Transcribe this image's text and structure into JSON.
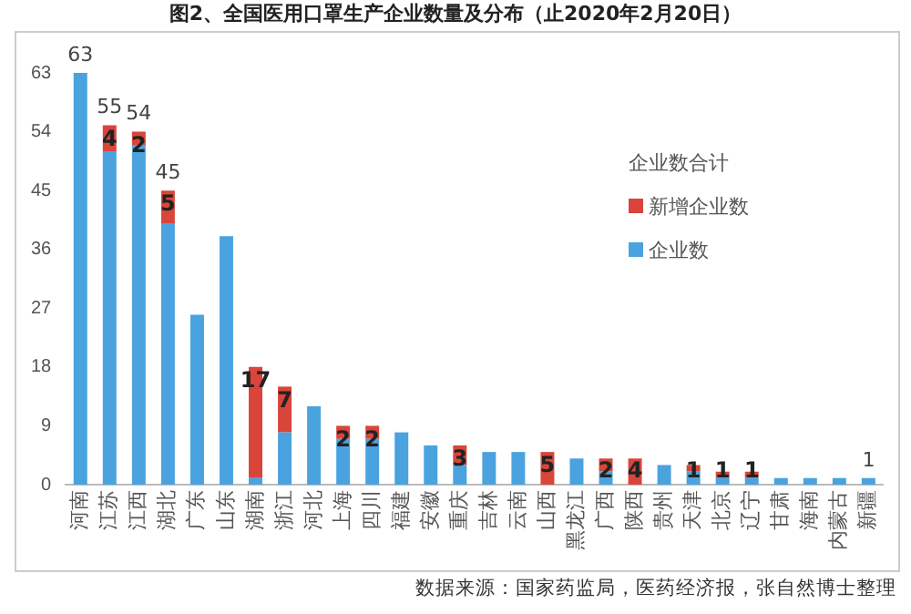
{
  "chart_data": {
    "type": "bar",
    "title": "图2、全国医用口罩生产企业数量及分布（止2020年2月20日）",
    "categories": [
      "河南",
      "江苏",
      "江西",
      "湖北",
      "广东",
      "山东",
      "湖南",
      "浙江",
      "河北",
      "上海",
      "四川",
      "福建",
      "安徽",
      "重庆",
      "吉林",
      "云南",
      "山西",
      "黑龙江",
      "广西",
      "陕西",
      "贵州",
      "天津",
      "北京",
      "辽宁",
      "甘肃",
      "海南",
      "内蒙古",
      "新疆"
    ],
    "stacked": true,
    "series": [
      {
        "name": "企业数",
        "color": "#4aa3df",
        "values": [
          63,
          51,
          52,
          40,
          26,
          38,
          1,
          8,
          12,
          7,
          7,
          8,
          6,
          3,
          5,
          5,
          0,
          4,
          2,
          0,
          3,
          2,
          1,
          1,
          1,
          1,
          1,
          1
        ]
      },
      {
        "name": "新增企业数",
        "color": "#d9453a",
        "values": [
          0,
          4,
          2,
          5,
          0,
          0,
          17,
          7,
          0,
          2,
          2,
          0,
          0,
          3,
          0,
          0,
          5,
          0,
          2,
          4,
          0,
          1,
          1,
          1,
          0,
          0,
          0,
          0
        ],
        "value_labels": [
          null,
          "4",
          "2",
          "5",
          null,
          null,
          "17",
          "7",
          null,
          "2",
          "2",
          null,
          null,
          "3",
          null,
          null,
          "5",
          null,
          "2",
          "4",
          null,
          "1",
          "1",
          "1",
          null,
          null,
          null,
          null
        ]
      }
    ],
    "totals": [
      "63",
      "55",
      "54",
      "45",
      null,
      null,
      null,
      null,
      null,
      null,
      null,
      null,
      null,
      null,
      null,
      null,
      null,
      null,
      null,
      null,
      null,
      null,
      null,
      null,
      null,
      null,
      null,
      "1"
    ],
    "legend_title": "企业数合计",
    "legend": "right",
    "ylim": [
      0,
      63
    ],
    "yticks": [
      0,
      9,
      18,
      27,
      36,
      45,
      54,
      63
    ],
    "grid": false,
    "annotations": [
      "数据来源：国家药监局，医药经济报，张自然博士整理"
    ]
  }
}
